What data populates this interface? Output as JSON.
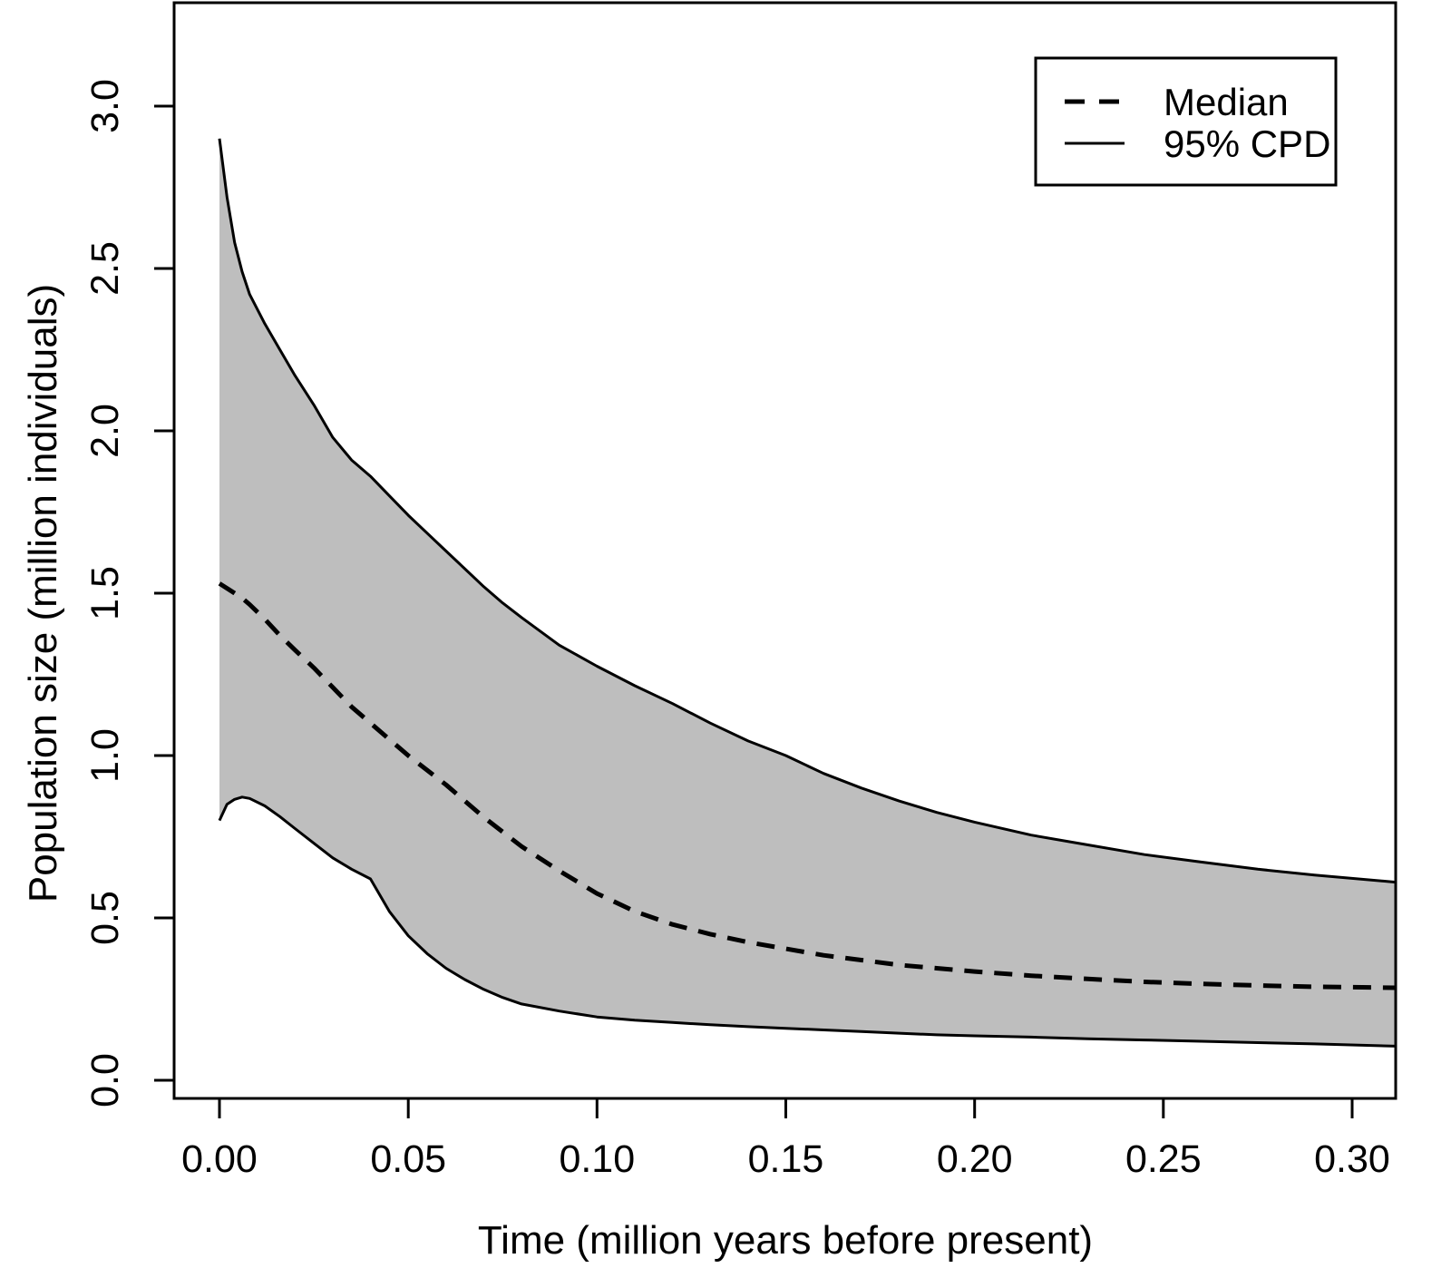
{
  "figure": {
    "background": "#ffffff"
  },
  "legend": {
    "position": "top-right",
    "items": [
      {
        "label": "Median",
        "line_style": "dashed"
      },
      {
        "label": "95% CPD",
        "line_style": "solid"
      }
    ]
  },
  "chart_data": {
    "type": "area",
    "title": "",
    "xlabel": "Time (million years before present)",
    "ylabel": "Population size (million individuals)",
    "xlim": [
      -0.012,
      0.3115
    ],
    "ylim": [
      -0.056,
      3.318
    ],
    "grid": false,
    "band_color": "#bebebe",
    "line_color": "#000000",
    "x_ticks": {
      "values": [
        0.0,
        0.05,
        0.1,
        0.15,
        0.2,
        0.25,
        0.3
      ],
      "labels": [
        "0.00",
        "0.05",
        "0.10",
        "0.15",
        "0.20",
        "0.25",
        "0.30"
      ]
    },
    "y_ticks": {
      "values": [
        0.0,
        0.5,
        1.0,
        1.5,
        2.0,
        2.5,
        3.0
      ],
      "labels": [
        "0.0",
        "0.5",
        "1.0",
        "1.5",
        "2.0",
        "2.5",
        "3.0"
      ]
    },
    "x": [
      0,
      0.002,
      0.004,
      0.006,
      0.008,
      0.012,
      0.016,
      0.02,
      0.025,
      0.03,
      0.035,
      0.04,
      0.045,
      0.05,
      0.055,
      0.06,
      0.065,
      0.07,
      0.075,
      0.08,
      0.09,
      0.1,
      0.11,
      0.12,
      0.13,
      0.14,
      0.15,
      0.16,
      0.17,
      0.18,
      0.19,
      0.2,
      0.215,
      0.23,
      0.245,
      0.26,
      0.275,
      0.29,
      0.3115
    ],
    "series": [
      {
        "name": "Median",
        "role": "median",
        "style": "dashed",
        "values": [
          1.53,
          1.515,
          1.5,
          1.485,
          1.465,
          1.42,
          1.37,
          1.325,
          1.27,
          1.21,
          1.15,
          1.1,
          1.05,
          1.0,
          0.955,
          0.91,
          0.86,
          0.81,
          0.765,
          0.72,
          0.645,
          0.575,
          0.52,
          0.48,
          0.45,
          0.425,
          0.405,
          0.385,
          0.37,
          0.355,
          0.345,
          0.335,
          0.322,
          0.312,
          0.303,
          0.297,
          0.292,
          0.288,
          0.285
        ]
      },
      {
        "name": "95% CPD upper bound",
        "role": "upper",
        "style": "solid",
        "values": [
          2.9,
          2.72,
          2.58,
          2.49,
          2.42,
          2.33,
          2.25,
          2.17,
          2.08,
          1.98,
          1.91,
          1.86,
          1.8,
          1.74,
          1.685,
          1.63,
          1.575,
          1.52,
          1.47,
          1.425,
          1.34,
          1.275,
          1.215,
          1.16,
          1.1,
          1.045,
          1.0,
          0.945,
          0.9,
          0.86,
          0.825,
          0.795,
          0.755,
          0.725,
          0.695,
          0.672,
          0.65,
          0.632,
          0.61
        ]
      },
      {
        "name": "95% CPD lower bound",
        "role": "lower",
        "style": "solid",
        "values": [
          0.8,
          0.85,
          0.865,
          0.872,
          0.868,
          0.845,
          0.812,
          0.775,
          0.73,
          0.685,
          0.65,
          0.62,
          0.52,
          0.445,
          0.39,
          0.345,
          0.31,
          0.28,
          0.255,
          0.235,
          0.213,
          0.195,
          0.185,
          0.178,
          0.171,
          0.165,
          0.16,
          0.155,
          0.15,
          0.145,
          0.14,
          0.137,
          0.133,
          0.128,
          0.124,
          0.12,
          0.116,
          0.112,
          0.105
        ]
      }
    ]
  }
}
